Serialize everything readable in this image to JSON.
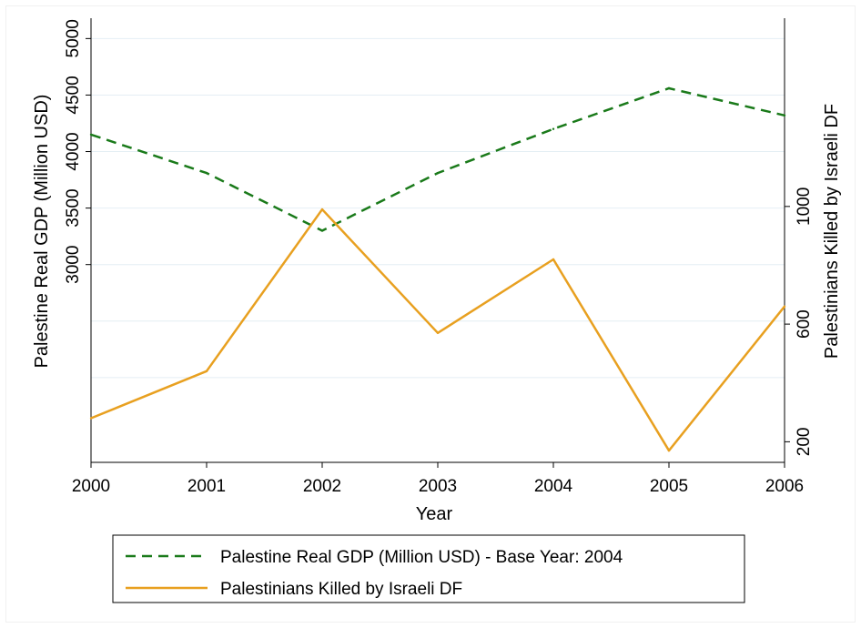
{
  "chart_data": {
    "type": "line",
    "x": [
      2000,
      2001,
      2002,
      2003,
      2004,
      2005,
      2006
    ],
    "xlabel": "Year",
    "xlim": [
      2000,
      2006
    ],
    "x_ticks": [
      2000,
      2001,
      2002,
      2003,
      2004,
      2005,
      2006
    ],
    "y_left": {
      "label": "Palestine Real GDP (Million USD)",
      "lim": [
        1250,
        5180
      ],
      "ticks": [
        3000,
        3500,
        4000,
        4500,
        5000
      ]
    },
    "y_right": {
      "label": "Palestinians Killed by Israeli DF",
      "lim": [
        130,
        1640
      ],
      "ticks": [
        200,
        600,
        1000
      ]
    },
    "grid": true,
    "legend_position": "bottom",
    "series": [
      {
        "name": "Palestine Real GDP (Million USD) - Base Year: 2004",
        "axis": "left",
        "style": "dashed",
        "color": "#1a7a1a",
        "values": [
          4150,
          3810,
          3300,
          3810,
          4200,
          4560,
          4320
        ]
      },
      {
        "name": "Palestinians Killed by Israeli DF",
        "axis": "right",
        "style": "solid",
        "color": "#e8a020",
        "values": [
          280,
          440,
          990,
          570,
          820,
          170,
          660
        ]
      }
    ]
  }
}
